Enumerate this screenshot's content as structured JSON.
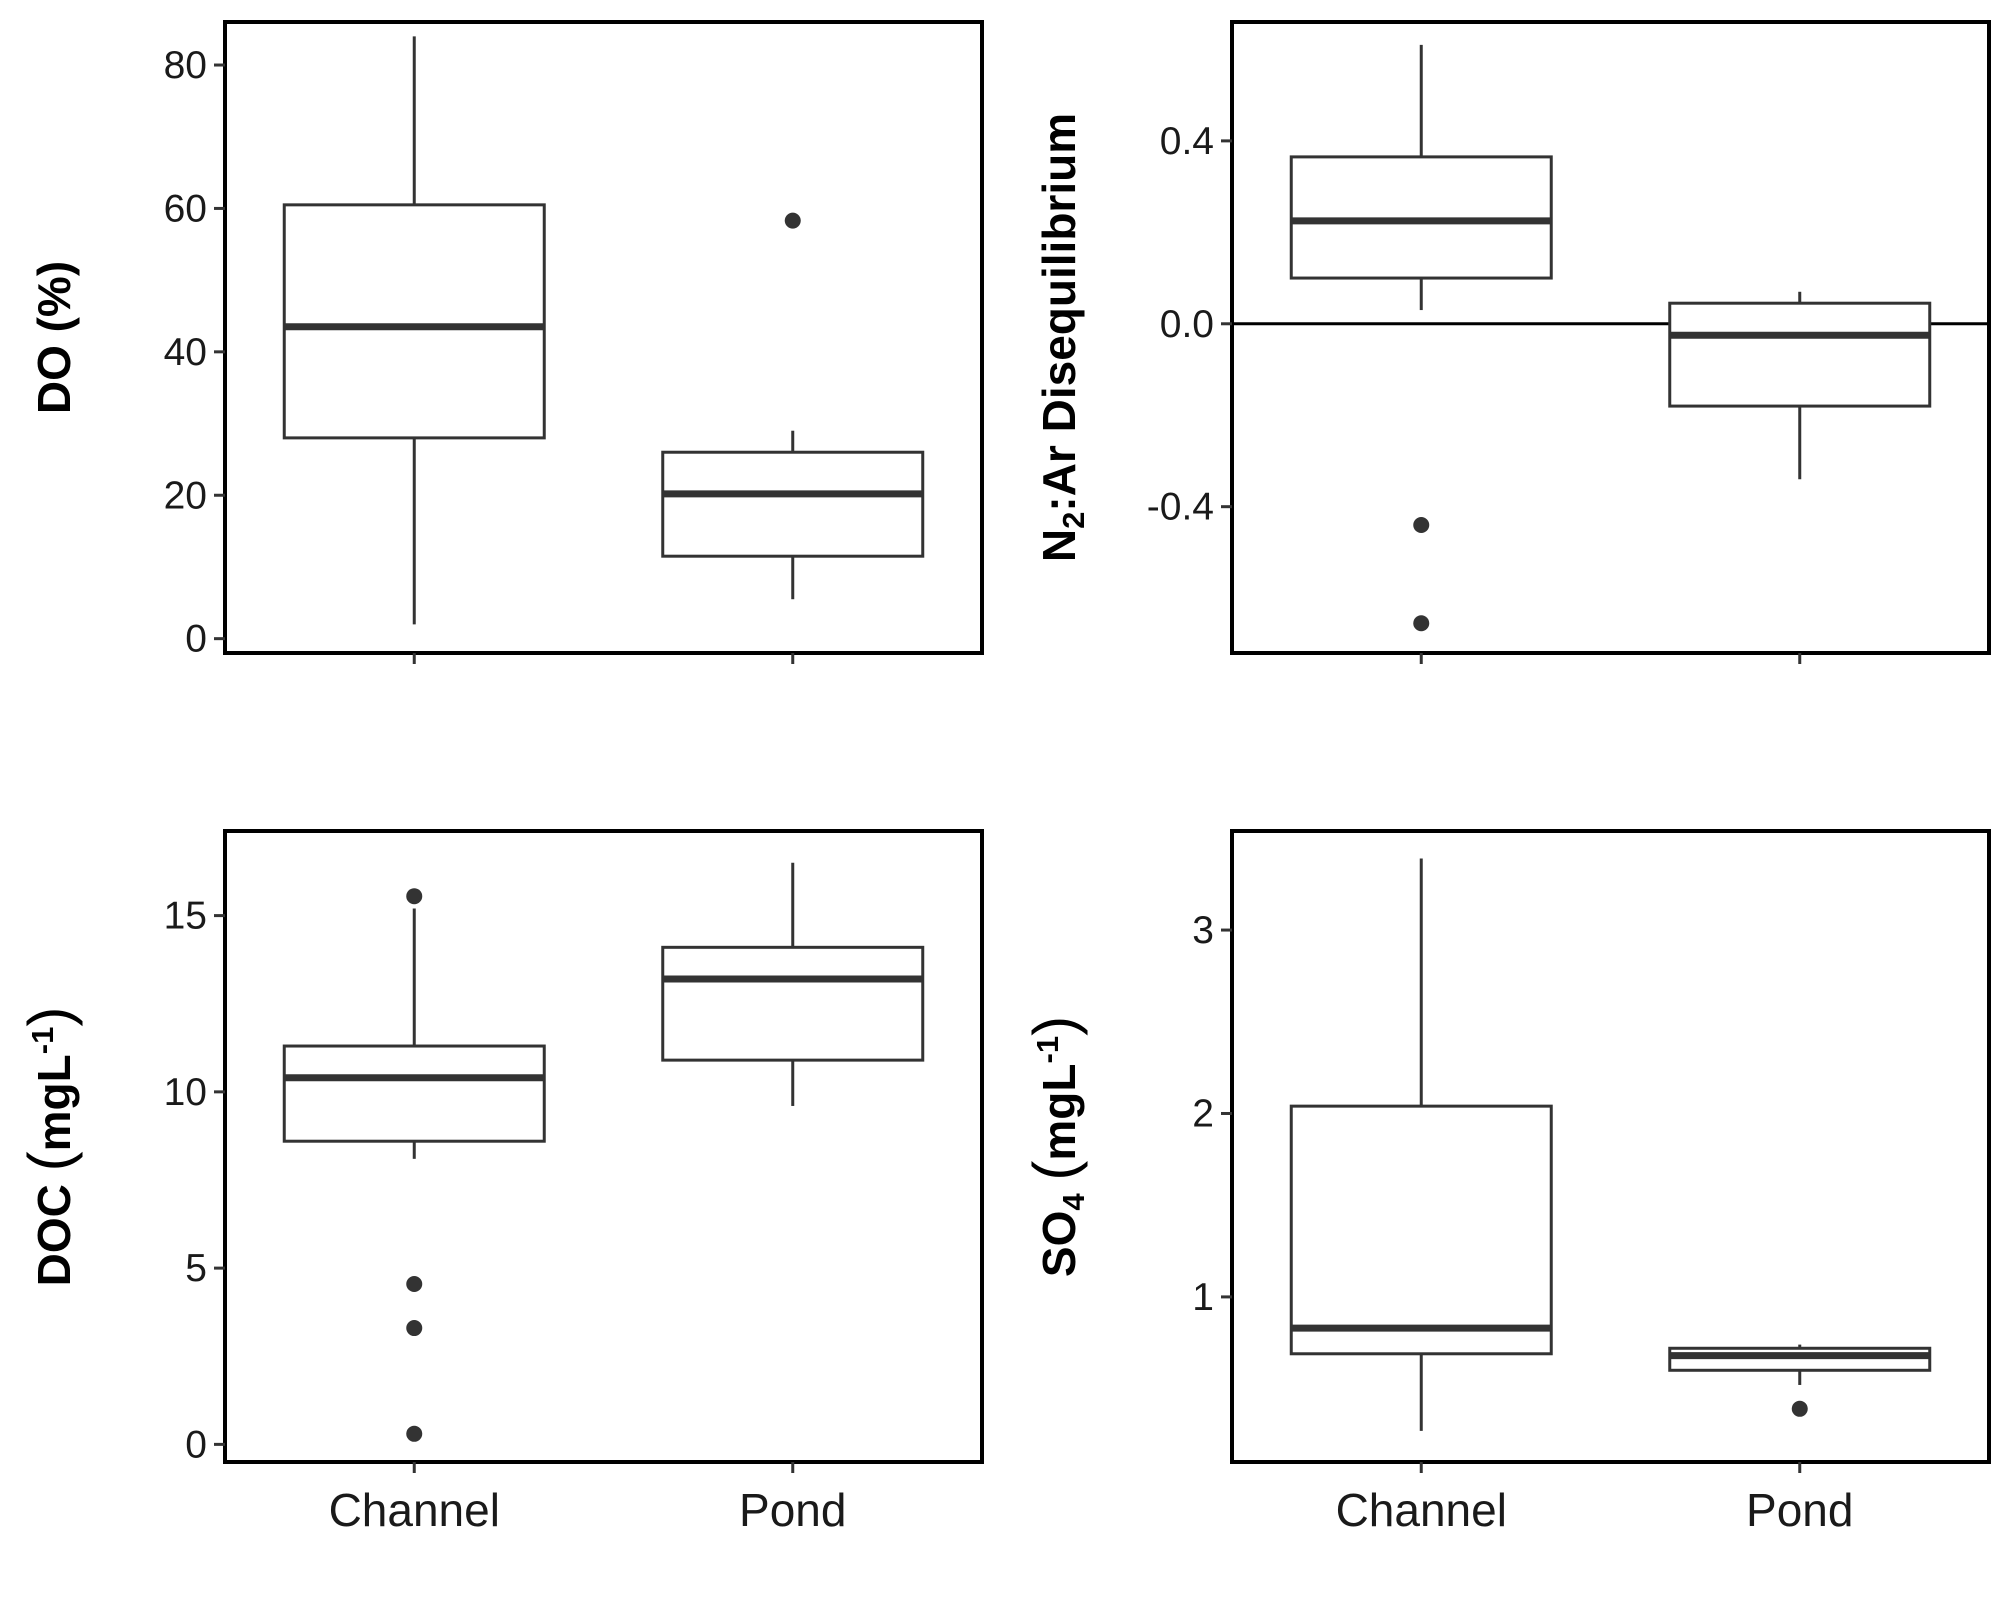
{
  "chart_data": [
    {
      "type": "box",
      "ylabel": "DO (%)",
      "ylabel_parts": [
        {
          "text": "DO ",
          "style": "normal"
        },
        {
          "text": "(%)",
          "style": "normal"
        }
      ],
      "categories": [
        "Channel",
        "Pond"
      ],
      "ylim": [
        -2,
        86
      ],
      "yticks": [
        0,
        20,
        40,
        60,
        80
      ],
      "yticklabels": [
        "0",
        "20",
        "40",
        "60",
        "80"
      ],
      "show_x_labels": false,
      "reference_line": null,
      "boxes": [
        {
          "category": "Channel",
          "whisker_low": 2,
          "q1": 28,
          "median": 43.5,
          "q3": 60.5,
          "whisker_high": 84,
          "outliers": []
        },
        {
          "category": "Pond",
          "whisker_low": 5.5,
          "q1": 11.5,
          "median": 20.2,
          "q3": 26,
          "whisker_high": 29,
          "outliers": [
            58.3
          ]
        }
      ]
    },
    {
      "type": "box",
      "ylabel": "N2:Ar Disequilibrium",
      "ylabel_parts": [
        {
          "text": "N",
          "style": "normal"
        },
        {
          "text": "2",
          "style": "sub"
        },
        {
          "text": ":Ar Disequilibrium",
          "style": "normal"
        }
      ],
      "categories": [
        "Channel",
        "Pond"
      ],
      "ylim": [
        -0.72,
        0.66
      ],
      "yticks": [
        -0.4,
        0.0,
        0.4
      ],
      "yticklabels": [
        "-0.4",
        "0.0",
        "0.4"
      ],
      "show_x_labels": false,
      "reference_line": 0,
      "boxes": [
        {
          "category": "Channel",
          "whisker_low": 0.03,
          "q1": 0.1,
          "median": 0.225,
          "q3": 0.365,
          "whisker_high": 0.61,
          "outliers": [
            -0.44,
            -0.655
          ]
        },
        {
          "category": "Pond",
          "whisker_low": -0.34,
          "q1": -0.18,
          "median": -0.025,
          "q3": 0.045,
          "whisker_high": 0.07,
          "outliers": []
        }
      ]
    },
    {
      "type": "box",
      "ylabel": "DOC (mgL-1)",
      "ylabel_parts": [
        {
          "text": "DOC ",
          "style": "normal"
        },
        {
          "text": "(",
          "style": "paren"
        },
        {
          "text": "mgL",
          "style": "normal"
        },
        {
          "text": "-1",
          "style": "sup"
        },
        {
          "text": ")",
          "style": "paren"
        }
      ],
      "categories": [
        "Channel",
        "Pond"
      ],
      "ylim": [
        -0.5,
        17.4
      ],
      "yticks": [
        0,
        5,
        10,
        15
      ],
      "yticklabels": [
        "0",
        "5",
        "10",
        "15"
      ],
      "show_x_labels": true,
      "reference_line": null,
      "boxes": [
        {
          "category": "Channel",
          "whisker_low": 8.1,
          "q1": 8.6,
          "median": 10.4,
          "q3": 11.3,
          "whisker_high": 15.2,
          "outliers": [
            15.55,
            4.55,
            3.3,
            0.3
          ]
        },
        {
          "category": "Pond",
          "whisker_low": 9.6,
          "q1": 10.9,
          "median": 13.2,
          "q3": 14.1,
          "whisker_high": 16.5,
          "outliers": []
        }
      ]
    },
    {
      "type": "box",
      "ylabel": "SO4 (mgL-1)",
      "ylabel_parts": [
        {
          "text": "SO",
          "style": "normal"
        },
        {
          "text": "4",
          "style": "sub"
        },
        {
          "text": " ",
          "style": "normal"
        },
        {
          "text": "(",
          "style": "paren"
        },
        {
          "text": "mgL",
          "style": "normal"
        },
        {
          "text": "-1",
          "style": "sup"
        },
        {
          "text": ")",
          "style": "paren"
        }
      ],
      "categories": [
        "Channel",
        "Pond"
      ],
      "ylim": [
        0.1,
        3.54
      ],
      "yticks": [
        1,
        2,
        3
      ],
      "yticklabels": [
        "1",
        "2",
        "3"
      ],
      "show_x_labels": true,
      "reference_line": null,
      "boxes": [
        {
          "category": "Channel",
          "whisker_low": 0.27,
          "q1": 0.69,
          "median": 0.83,
          "q3": 2.04,
          "whisker_high": 3.39,
          "outliers": []
        },
        {
          "category": "Pond",
          "whisker_low": 0.52,
          "q1": 0.6,
          "median": 0.68,
          "q3": 0.72,
          "whisker_high": 0.74,
          "outliers": [
            0.39
          ]
        }
      ]
    }
  ],
  "colors": {
    "panel_border": "#000000",
    "box_stroke": "#333333",
    "outlier_fill": "#333333",
    "reference_line": "#000000"
  }
}
